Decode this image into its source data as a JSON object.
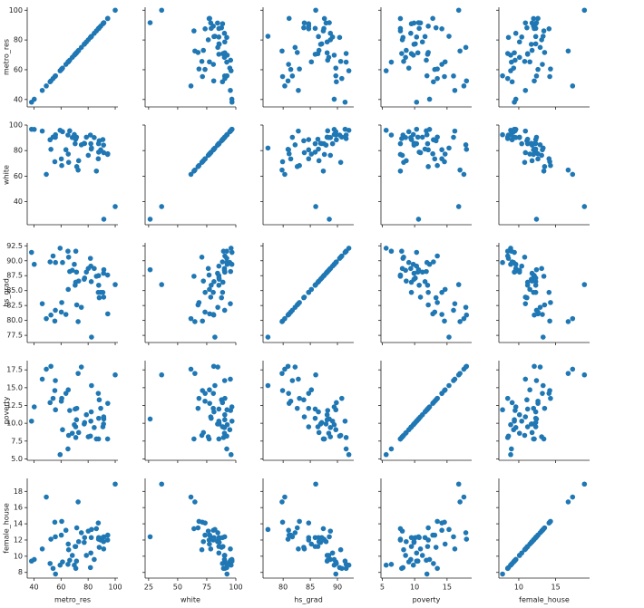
{
  "chart_data": {
    "type": "scatter_matrix",
    "color": "#1f77b4",
    "variables": [
      {
        "name": "metro_res",
        "lim": [
          35,
          102
        ],
        "xticks": [
          40,
          60,
          80,
          100
        ],
        "yticks": [
          40,
          60,
          80,
          100
        ],
        "values": [
          55.4,
          65.6,
          88.2,
          52.5,
          94.5,
          84.5,
          87.7,
          80.1,
          100,
          89.3,
          71.6,
          91.6,
          66.4,
          87.8,
          70.8,
          61.1,
          71.4,
          55.8,
          72.6,
          40.2,
          86.1,
          91.4,
          82.3,
          70.9,
          49.1,
          70.4,
          54.1,
          69.8,
          91.5,
          59.3,
          94.4,
          75.0,
          87.5,
          60.2,
          55.9,
          77.4,
          65.3,
          78.7,
          77.1,
          90.9,
          60.5,
          51.9,
          63.6,
          82.5,
          81.7,
          38.2,
          73.0,
          82.0,
          46.1,
          68.3,
          65.1
        ]
      },
      {
        "name": "white",
        "lim": [
          22,
          100
        ],
        "xticks": [
          25,
          50,
          75,
          100
        ],
        "yticks": [
          40,
          60,
          80,
          100
        ],
        "values": [
          71.3,
          70.8,
          87.7,
          81.0,
          77.5,
          90.2,
          85.4,
          76.3,
          36.2,
          80.6,
          67.5,
          26.3,
          95.5,
          78.8,
          88.9,
          94.8,
          90.5,
          90.4,
          64.8,
          96.6,
          64.0,
          84.3,
          81.2,
          89.4,
          61.4,
          85.4,
          90.6,
          92.6,
          78.4,
          95.9,
          77.0,
          84.5,
          73.6,
          73.5,
          92.4,
          85.5,
          77.3,
          90.5,
          85.7,
          88.6,
          68.3,
          88.5,
          80.7,
          82.0,
          92.2,
          96.7,
          72.1,
          85.4,
          95.3,
          90.2,
          92.2
        ]
      },
      {
        "name": "hs_grad",
        "lim": [
          76.3,
          93
        ],
        "xticks": [
          80,
          85,
          90
        ],
        "yticks": [
          77.5,
          {
            "value": 80,
            "label": "80.0"
          },
          82.5,
          {
            "value": 85,
            "label": "85.0"
          },
          87.5,
          {
            "value": 90,
            "label": "90.0"
          },
          92.5
        ],
        "values": [
          79.9,
          90.6,
          83.8,
          80.9,
          81.1,
          88.7,
          87.5,
          88.7,
          86.0,
          84.7,
          82.6,
          88.5,
          88.2,
          85.9,
          86.4,
          89.7,
          88.1,
          81.7,
          79.8,
          89.4,
          87.4,
          87.9,
          86.5,
          91.6,
          80.3,
          85.9,
          90.8,
          89.4,
          83.9,
          92.1,
          87.6,
          82.2,
          84.7,
          81.4,
          89.7,
          87.1,
          85.2,
          88.1,
          86.9,
          84.7,
          83.0,
          89.8,
          81.0,
          77.2,
          90.4,
          91.4,
          86.6,
          89.1,
          82.8,
          88.4,
          91.6
        ]
      },
      {
        "name": "poverty",
        "lim": [
          4.8,
          18.8
        ],
        "xticks": [
          5,
          10,
          15
        ],
        "yticks": [
          {
            "value": 5,
            "label": "5.0"
          },
          7.5,
          {
            "value": 10,
            "label": "10.0"
          },
          12.5,
          {
            "value": 15,
            "label": "15.0"
          },
          17.5
        ],
        "values": [
          14.6,
          8.3,
          13.3,
          18.0,
          12.8,
          9.4,
          7.8,
          8.1,
          16.8,
          12.1,
          12.1,
          10.6,
          11.8,
          10.7,
          9.5,
          9.1,
          10.5,
          16.0,
          17.0,
          12.3,
          7.8,
          9.9,
          11.6,
          8.0,
          17.6,
          12.0,
          13.5,
          9.8,
          10.9,
          5.6,
          7.8,
          17.9,
          14.2,
          13.1,
          11.9,
          10.1,
          14.7,
          11.2,
          9.9,
          9.5,
          13.5,
          12.9,
          14.2,
          15.3,
          8.2,
          10.3,
          8.7,
          10.3,
          16.2,
          8.6,
          6.4
        ]
      },
      {
        "name": "female_house",
        "lim": [
          7.3,
          19.6
        ],
        "xticks": [
          10,
          15
        ],
        "yticks": [
          8,
          10,
          12,
          14,
          16,
          18
        ],
        "values": [
          14.2,
          10.8,
          11.1,
          12.1,
          12.6,
          9.6,
          12.1,
          13.1,
          18.9,
          12.0,
          13.5,
          12.4,
          9.5,
          12.3,
          11.2,
          9.3,
          9.4,
          12.4,
          16.7,
          9.6,
          13.4,
          11.8,
          12.3,
          8.5,
          17.3,
          11.2,
          8.5,
          8.9,
          10.9,
          8.9,
          12.0,
          12.9,
          14.1,
          12.6,
          7.8,
          12.3,
          11.5,
          10.1,
          11.7,
          12.3,
          14.3,
          9.1,
          13.2,
          13.3,
          8.6,
          9.4,
          11.8,
          10.4,
          10.9,
          10.1,
          9.0
        ]
      }
    ]
  }
}
